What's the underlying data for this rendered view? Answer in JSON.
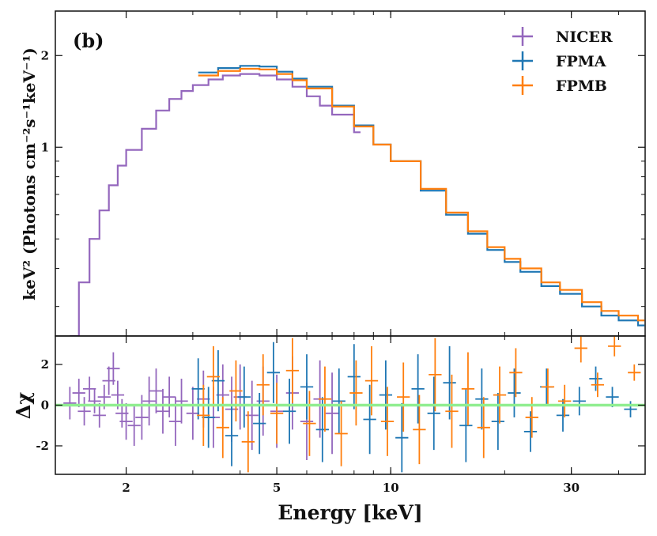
{
  "chart_data": [
    {
      "panel": "top",
      "type": "line",
      "panel_label": "(b)",
      "ylabel": "keV² (Photons cm⁻²s⁻¹keV⁻¹)",
      "xscale": "log",
      "yscale": "log",
      "xlim": [
        1.3,
        47
      ],
      "ylim": [
        0.24,
        2.8
      ],
      "yticks": [
        1,
        2
      ],
      "ytick_labels": [
        "1",
        "2"
      ],
      "legend": {
        "placement": "top-right",
        "entries": [
          {
            "label": "NICER",
            "color": "#9467bd"
          },
          {
            "label": "FPMA",
            "color": "#1f77b4"
          },
          {
            "label": "FPMB",
            "color": "#ff7f0e"
          }
        ]
      },
      "series": [
        {
          "name": "NICER",
          "color": "#9467bd",
          "style": "step",
          "x": [
            1.42,
            1.5,
            1.6,
            1.7,
            1.8,
            1.9,
            2.0,
            2.2,
            2.4,
            2.6,
            2.8,
            3.0,
            3.3,
            3.6,
            4.0,
            4.5,
            5.0,
            5.5,
            6.0,
            6.5,
            7.0,
            8.0
          ],
          "y": [
            0.24,
            0.36,
            0.5,
            0.62,
            0.75,
            0.87,
            0.98,
            1.15,
            1.32,
            1.44,
            1.53,
            1.6,
            1.67,
            1.72,
            1.74,
            1.72,
            1.67,
            1.58,
            1.47,
            1.37,
            1.28,
            1.12
          ]
        },
        {
          "name": "FPMA",
          "color": "#1f77b4",
          "style": "step",
          "x": [
            3.1,
            3.5,
            4.0,
            4.5,
            5.0,
            5.5,
            6.0,
            7.0,
            8.0,
            9.0,
            10.0,
            12.0,
            14.0,
            16.0,
            18.0,
            20.0,
            22.0,
            25.0,
            28.0,
            32.0,
            36.0,
            40.0,
            45.0
          ],
          "y": [
            1.76,
            1.82,
            1.85,
            1.84,
            1.77,
            1.68,
            1.58,
            1.37,
            1.18,
            1.02,
            0.9,
            0.72,
            0.6,
            0.52,
            0.46,
            0.42,
            0.39,
            0.35,
            0.33,
            0.3,
            0.28,
            0.27,
            0.26
          ]
        },
        {
          "name": "FPMB",
          "color": "#ff7f0e",
          "style": "step",
          "x": [
            3.1,
            3.5,
            4.0,
            4.5,
            5.0,
            5.5,
            6.0,
            7.0,
            8.0,
            9.0,
            10.0,
            12.0,
            14.0,
            16.0,
            18.0,
            20.0,
            22.0,
            25.0,
            28.0,
            32.0,
            36.0,
            40.0,
            45.0
          ],
          "y": [
            1.72,
            1.78,
            1.81,
            1.8,
            1.74,
            1.66,
            1.56,
            1.36,
            1.17,
            1.02,
            0.9,
            0.73,
            0.61,
            0.53,
            0.47,
            0.43,
            0.4,
            0.36,
            0.34,
            0.31,
            0.29,
            0.28,
            0.27
          ]
        }
      ]
    },
    {
      "panel": "bottom",
      "type": "scatter",
      "ylabel": "Δχ",
      "xlabel": "Energy [keV]",
      "xscale": "log",
      "xlim": [
        1.3,
        47
      ],
      "ylim": [
        -3.4,
        3.4
      ],
      "xticks": [
        2,
        5,
        10,
        30
      ],
      "xtick_labels": [
        "2",
        "5",
        "10",
        "30"
      ],
      "yticks": [
        -2,
        0,
        2
      ],
      "ytick_labels": [
        "-2",
        "0",
        "2"
      ],
      "zero_line": {
        "y": 0,
        "color": "#90ee90"
      },
      "series": [
        {
          "name": "NICER",
          "color": "#9467bd",
          "x": [
            1.42,
            1.5,
            1.55,
            1.6,
            1.65,
            1.7,
            1.75,
            1.8,
            1.85,
            1.9,
            1.95,
            2.0,
            2.1,
            2.2,
            2.3,
            2.4,
            2.5,
            2.6,
            2.7,
            2.8,
            3.0,
            3.2,
            3.4,
            3.6,
            3.8,
            4.0,
            4.3,
            4.6,
            5.0,
            5.5,
            6.0,
            6.5,
            7.0
          ],
          "y": [
            0.1,
            0.6,
            -0.3,
            0.8,
            0.2,
            -0.5,
            0.4,
            1.2,
            1.8,
            0.5,
            -0.4,
            -0.8,
            -1.0,
            -0.6,
            0.2,
            0.7,
            -0.3,
            0.4,
            -0.8,
            0.2,
            -0.4,
            0.3,
            -0.6,
            0.5,
            -0.2,
            0.4,
            -0.5,
            0.2,
            -0.3,
            0.6,
            -0.8,
            0.3,
            -0.4
          ],
          "err": [
            0.8,
            0.7,
            0.7,
            0.6,
            0.6,
            0.6,
            0.6,
            0.7,
            0.8,
            0.7,
            0.7,
            0.9,
            1.0,
            1.1,
            1.2,
            1.1,
            1.1,
            1.0,
            1.2,
            1.1,
            1.3,
            1.4,
            1.5,
            1.5,
            1.6,
            1.6,
            1.7,
            1.7,
            1.8,
            1.8,
            1.9,
            1.9,
            2.0
          ]
        },
        {
          "name": "FPMA",
          "color": "#1f77b4",
          "x": [
            3.1,
            3.3,
            3.5,
            3.8,
            4.1,
            4.5,
            4.9,
            5.4,
            6.0,
            6.6,
            7.3,
            8.0,
            8.8,
            9.7,
            10.7,
            11.8,
            13.0,
            14.3,
            15.8,
            17.4,
            19.2,
            21.2,
            23.4,
            25.8,
            28.5,
            31.5,
            34.8,
            38.5,
            43.0
          ],
          "y": [
            0.8,
            -0.6,
            1.2,
            -1.5,
            0.4,
            -0.9,
            1.6,
            -0.3,
            0.9,
            -1.2,
            0.2,
            1.4,
            -0.7,
            0.5,
            -1.6,
            0.8,
            -0.4,
            1.1,
            -1.0,
            0.3,
            -0.8,
            0.6,
            -1.3,
            0.9,
            -0.5,
            0.2,
            1.3,
            0.4,
            -0.2
          ],
          "err": [
            1.5,
            1.5,
            1.5,
            1.5,
            1.5,
            1.5,
            1.5,
            1.6,
            1.6,
            1.6,
            1.6,
            1.6,
            1.7,
            1.7,
            1.7,
            1.7,
            1.8,
            1.8,
            1.8,
            1.5,
            1.4,
            1.2,
            1.0,
            0.9,
            0.8,
            0.7,
            0.6,
            0.5,
            0.4
          ]
        },
        {
          "name": "FPMB",
          "color": "#ff7f0e",
          "x": [
            3.2,
            3.4,
            3.6,
            3.9,
            4.2,
            4.6,
            5.0,
            5.5,
            6.1,
            6.7,
            7.4,
            8.1,
            8.9,
            9.8,
            10.8,
            11.9,
            13.1,
            14.5,
            16.0,
            17.6,
            19.4,
            21.4,
            23.6,
            26.0,
            28.8,
            31.8,
            35.2,
            39.0,
            44.0
          ],
          "y": [
            -0.5,
            1.4,
            -1.1,
            0.7,
            -1.8,
            1.0,
            -0.4,
            1.7,
            -0.9,
            0.3,
            -1.4,
            0.6,
            1.2,
            -0.8,
            0.4,
            -1.2,
            1.5,
            -0.3,
            0.8,
            -1.1,
            0.5,
            1.6,
            -0.6,
            0.9,
            0.2,
            2.8,
            1.0,
            2.9,
            1.6
          ],
          "err": [
            1.5,
            1.5,
            1.5,
            1.5,
            1.5,
            1.5,
            1.5,
            1.6,
            1.6,
            1.6,
            1.6,
            1.6,
            1.7,
            1.7,
            1.7,
            1.7,
            1.8,
            1.8,
            1.8,
            1.5,
            1.4,
            1.2,
            1.0,
            0.9,
            0.8,
            0.7,
            0.6,
            0.5,
            0.4
          ]
        }
      ]
    }
  ]
}
